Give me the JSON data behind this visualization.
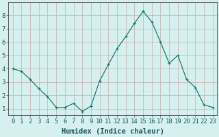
{
  "x": [
    0,
    1,
    2,
    3,
    4,
    5,
    6,
    7,
    8,
    9,
    10,
    11,
    12,
    13,
    14,
    15,
    16,
    17,
    18,
    19,
    20,
    21,
    22,
    23
  ],
  "y": [
    4.0,
    3.8,
    3.2,
    2.5,
    1.9,
    1.1,
    1.1,
    1.4,
    0.8,
    1.2,
    3.1,
    4.3,
    5.5,
    6.4,
    7.4,
    8.3,
    7.5,
    6.0,
    4.4,
    5.0,
    3.2,
    2.6,
    1.3,
    1.1
  ],
  "xlabel": "Humidex (Indice chaleur)",
  "xlim": [
    -0.5,
    23.5
  ],
  "ylim": [
    0.5,
    9.0
  ],
  "xticks": [
    0,
    1,
    2,
    3,
    4,
    5,
    6,
    7,
    8,
    9,
    10,
    11,
    12,
    13,
    14,
    15,
    16,
    17,
    18,
    19,
    20,
    21,
    22,
    23
  ],
  "yticks": [
    1,
    2,
    3,
    4,
    5,
    6,
    7,
    8
  ],
  "line_color": "#1a7a6e",
  "marker_color": "#1a7a6e",
  "bg_color": "#d6f0f0",
  "grid_color": "#c8b8b8",
  "xlabel_fontsize": 7.5,
  "tick_fontsize": 6.5
}
